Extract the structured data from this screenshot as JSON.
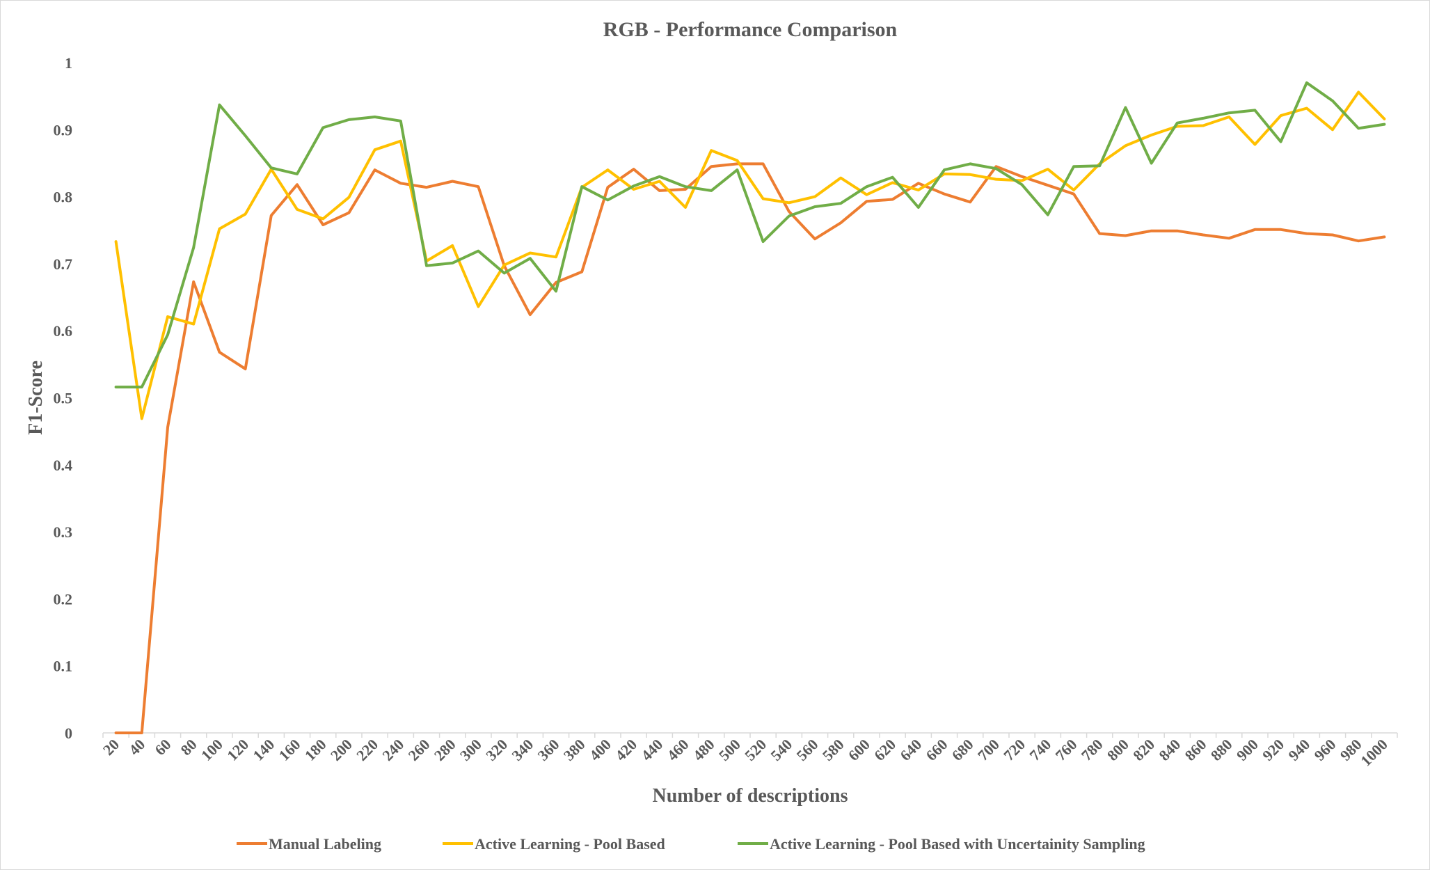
{
  "chart_data": {
    "type": "line",
    "title": "RGB - Performance Comparison",
    "xlabel": "Number of descriptions",
    "ylabel": "F1-Score",
    "ylim": [
      0,
      1
    ],
    "yticks": [
      "0",
      "0.1",
      "0.2",
      "0.3",
      "0.4",
      "0.5",
      "0.6",
      "0.7",
      "0.8",
      "0.9",
      "1"
    ],
    "grid": false,
    "legend_position": "bottom",
    "x": [
      "20",
      "40",
      "60",
      "80",
      "100",
      "120",
      "140",
      "160",
      "180",
      "200",
      "220",
      "240",
      "260",
      "280",
      "300",
      "320",
      "340",
      "360",
      "380",
      "400",
      "420",
      "440",
      "460",
      "480",
      "500",
      "520",
      "540",
      "560",
      "580",
      "600",
      "620",
      "640",
      "660",
      "680",
      "700",
      "720",
      "740",
      "760",
      "780",
      "800",
      "820",
      "840",
      "860",
      "880",
      "900",
      "920",
      "940",
      "960",
      "980",
      "1000"
    ],
    "series": [
      {
        "name": "Manual Labeling",
        "color": "#ED7D31",
        "values": [
          0,
          0,
          0.456,
          0.673,
          0.568,
          0.543,
          0.772,
          0.818,
          0.758,
          0.776,
          0.84,
          0.82,
          0.814,
          0.823,
          0.815,
          0.697,
          0.624,
          0.672,
          0.688,
          0.814,
          0.841,
          0.809,
          0.811,
          0.845,
          0.849,
          0.849,
          0.778,
          0.737,
          0.761,
          0.793,
          0.796,
          0.82,
          0.804,
          0.792,
          0.845,
          0.83,
          0.817,
          0.804,
          0.745,
          0.742,
          0.749,
          0.749,
          0.743,
          0.738,
          0.751,
          0.751,
          0.745,
          0.743,
          0.734,
          0.74
        ]
      },
      {
        "name": "Active Learning - Pool Based",
        "color": "#FFC000",
        "values": [
          0.733,
          0.469,
          0.621,
          0.61,
          0.752,
          0.774,
          0.841,
          0.781,
          0.767,
          0.799,
          0.87,
          0.883,
          0.704,
          0.727,
          0.636,
          0.698,
          0.716,
          0.71,
          0.814,
          0.84,
          0.811,
          0.823,
          0.784,
          0.869,
          0.854,
          0.797,
          0.791,
          0.8,
          0.828,
          0.803,
          0.821,
          0.81,
          0.834,
          0.833,
          0.826,
          0.824,
          0.841,
          0.81,
          0.849,
          0.876,
          0.892,
          0.905,
          0.906,
          0.919,
          0.878,
          0.921,
          0.932,
          0.9,
          0.956,
          0.916
        ]
      },
      {
        "name": "Active Learning - Pool Based with Uncertainity Sampling",
        "color": "#70AD47",
        "values": [
          0.516,
          0.516,
          0.594,
          0.724,
          0.937,
          0.891,
          0.843,
          0.834,
          0.903,
          0.915,
          0.919,
          0.913,
          0.697,
          0.701,
          0.719,
          0.686,
          0.708,
          0.659,
          0.815,
          0.795,
          0.816,
          0.83,
          0.815,
          0.809,
          0.84,
          0.733,
          0.771,
          0.785,
          0.79,
          0.815,
          0.829,
          0.784,
          0.84,
          0.849,
          0.842,
          0.818,
          0.773,
          0.845,
          0.846,
          0.933,
          0.85,
          0.91,
          0.917,
          0.925,
          0.929,
          0.882,
          0.97,
          0.943,
          0.902,
          0.908
        ]
      }
    ]
  }
}
